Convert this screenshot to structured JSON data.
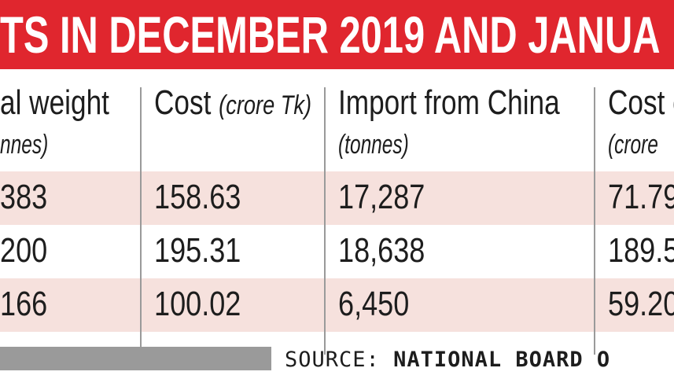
{
  "title": "TS IN DECEMBER 2019 AND JANUA",
  "columns": [
    {
      "label": "al weight",
      "unit": "nnes)"
    },
    {
      "label": "Cost",
      "unit": "(crore Tk)"
    },
    {
      "label": "Import from China",
      "unit": "(tonnes)"
    },
    {
      "label": "Cost o",
      "unit": "(crore"
    }
  ],
  "rows": [
    {
      "weight": "383",
      "cost": "158.63",
      "china": "17,287",
      "china_cost": "71.79"
    },
    {
      "weight": "200",
      "cost": "195.31",
      "china": "18,638",
      "china_cost": "189.5"
    },
    {
      "weight": "166",
      "cost": "100.02",
      "china": "6,450",
      "china_cost": "59.20"
    }
  ],
  "source": {
    "label": "SOURCE:",
    "org": "NATIONAL BOARD O"
  },
  "colors": {
    "title_bg": "#e0262e",
    "row_bg": "#f6e1dd",
    "divider": "#9a9a9a"
  }
}
